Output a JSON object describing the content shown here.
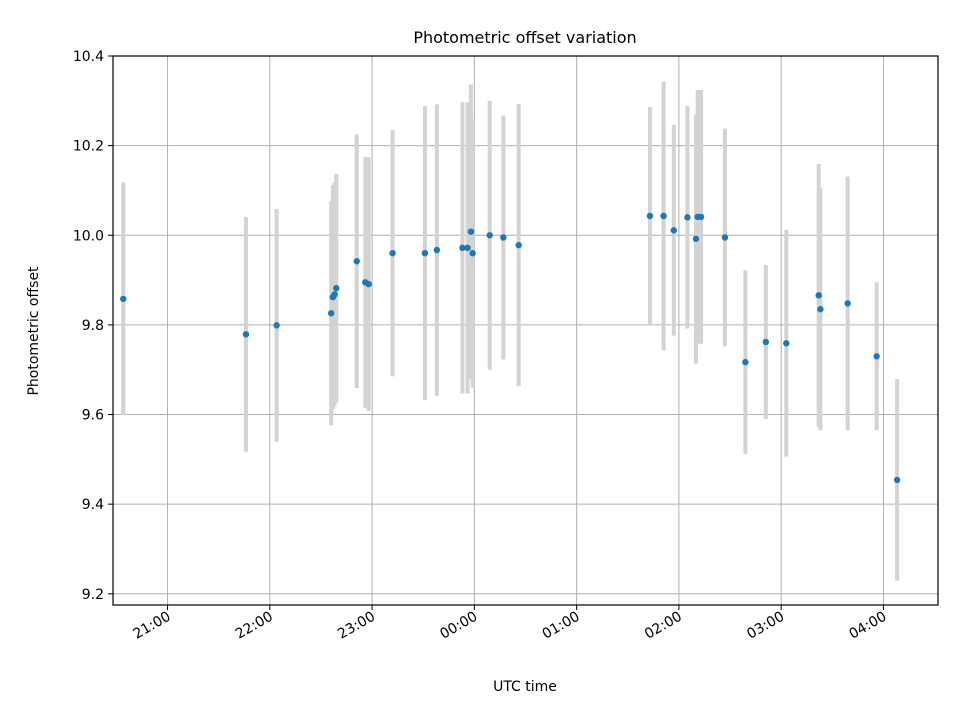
{
  "chart_data": {
    "type": "scatter",
    "title": "Photometric offset variation",
    "xlabel": "UTC time",
    "ylabel": "Photometric offset",
    "ylim": [
      9.175,
      10.4
    ],
    "xlim": [
      "20:28",
      "04:32"
    ],
    "x_tick_labels": [
      "21:00",
      "22:00",
      "23:00",
      "00:00",
      "01:00",
      "02:00",
      "03:00",
      "04:00"
    ],
    "y_tick_labels": [
      "9.2",
      "9.4",
      "9.6",
      "9.8",
      "10.0",
      "10.2",
      "10.4"
    ],
    "grid": true,
    "legend": "none",
    "colors": {
      "points": "#1f77b4",
      "errorbars": "#d3d3d3"
    },
    "points": [
      {
        "x": "20:34",
        "y": 9.858,
        "yerr": 0.26
      },
      {
        "x": "21:46",
        "y": 9.779,
        "yerr": 0.262
      },
      {
        "x": "22:04",
        "y": 9.799,
        "yerr": 0.26
      },
      {
        "x": "22:36",
        "y": 9.826,
        "yerr": 0.25
      },
      {
        "x": "22:37",
        "y": 9.862,
        "yerr": 0.25
      },
      {
        "x": "22:38",
        "y": 9.868,
        "yerr": 0.25
      },
      {
        "x": "22:39",
        "y": 9.882,
        "yerr": 0.255
      },
      {
        "x": "22:51",
        "y": 9.942,
        "yerr": 0.283
      },
      {
        "x": "22:56",
        "y": 9.895,
        "yerr": 0.28
      },
      {
        "x": "22:58",
        "y": 9.891,
        "yerr": 0.283
      },
      {
        "x": "23:12",
        "y": 9.96,
        "yerr": 0.275
      },
      {
        "x": "23:31",
        "y": 9.96,
        "yerr": 0.328
      },
      {
        "x": "23:38",
        "y": 9.967,
        "yerr": 0.325
      },
      {
        "x": "23:53",
        "y": 9.972,
        "yerr": 0.325
      },
      {
        "x": "23:56",
        "y": 9.972,
        "yerr": 0.325
      },
      {
        "x": "23:58",
        "y": 10.008,
        "yerr": 0.328
      },
      {
        "x": "23:59",
        "y": 9.96,
        "yerr": 0.3
      },
      {
        "x": "00:09",
        "y": 10.0,
        "yerr": 0.3
      },
      {
        "x": "00:17",
        "y": 9.995,
        "yerr": 0.272
      },
      {
        "x": "00:26",
        "y": 9.978,
        "yerr": 0.315
      },
      {
        "x": "01:43",
        "y": 10.043,
        "yerr": 0.243
      },
      {
        "x": "01:51",
        "y": 10.043,
        "yerr": 0.3
      },
      {
        "x": "01:57",
        "y": 10.011,
        "yerr": 0.235
      },
      {
        "x": "02:05",
        "y": 10.04,
        "yerr": 0.248
      },
      {
        "x": "02:10",
        "y": 9.992,
        "yerr": 0.278
      },
      {
        "x": "02:11",
        "y": 10.041,
        "yerr": 0.283
      },
      {
        "x": "02:13",
        "y": 10.041,
        "yerr": 0.283
      },
      {
        "x": "02:27",
        "y": 9.995,
        "yerr": 0.243
      },
      {
        "x": "02:39",
        "y": 9.717,
        "yerr": 0.205
      },
      {
        "x": "02:51",
        "y": 9.762,
        "yerr": 0.172
      },
      {
        "x": "03:03",
        "y": 9.759,
        "yerr": 0.253
      },
      {
        "x": "03:22",
        "y": 9.866,
        "yerr": 0.293
      },
      {
        "x": "03:23",
        "y": 9.835,
        "yerr": 0.27
      },
      {
        "x": "03:39",
        "y": 9.848,
        "yerr": 0.283
      },
      {
        "x": "03:56",
        "y": 9.73,
        "yerr": 0.165
      },
      {
        "x": "04:08",
        "y": 9.454,
        "yerr": 0.225
      }
    ]
  }
}
